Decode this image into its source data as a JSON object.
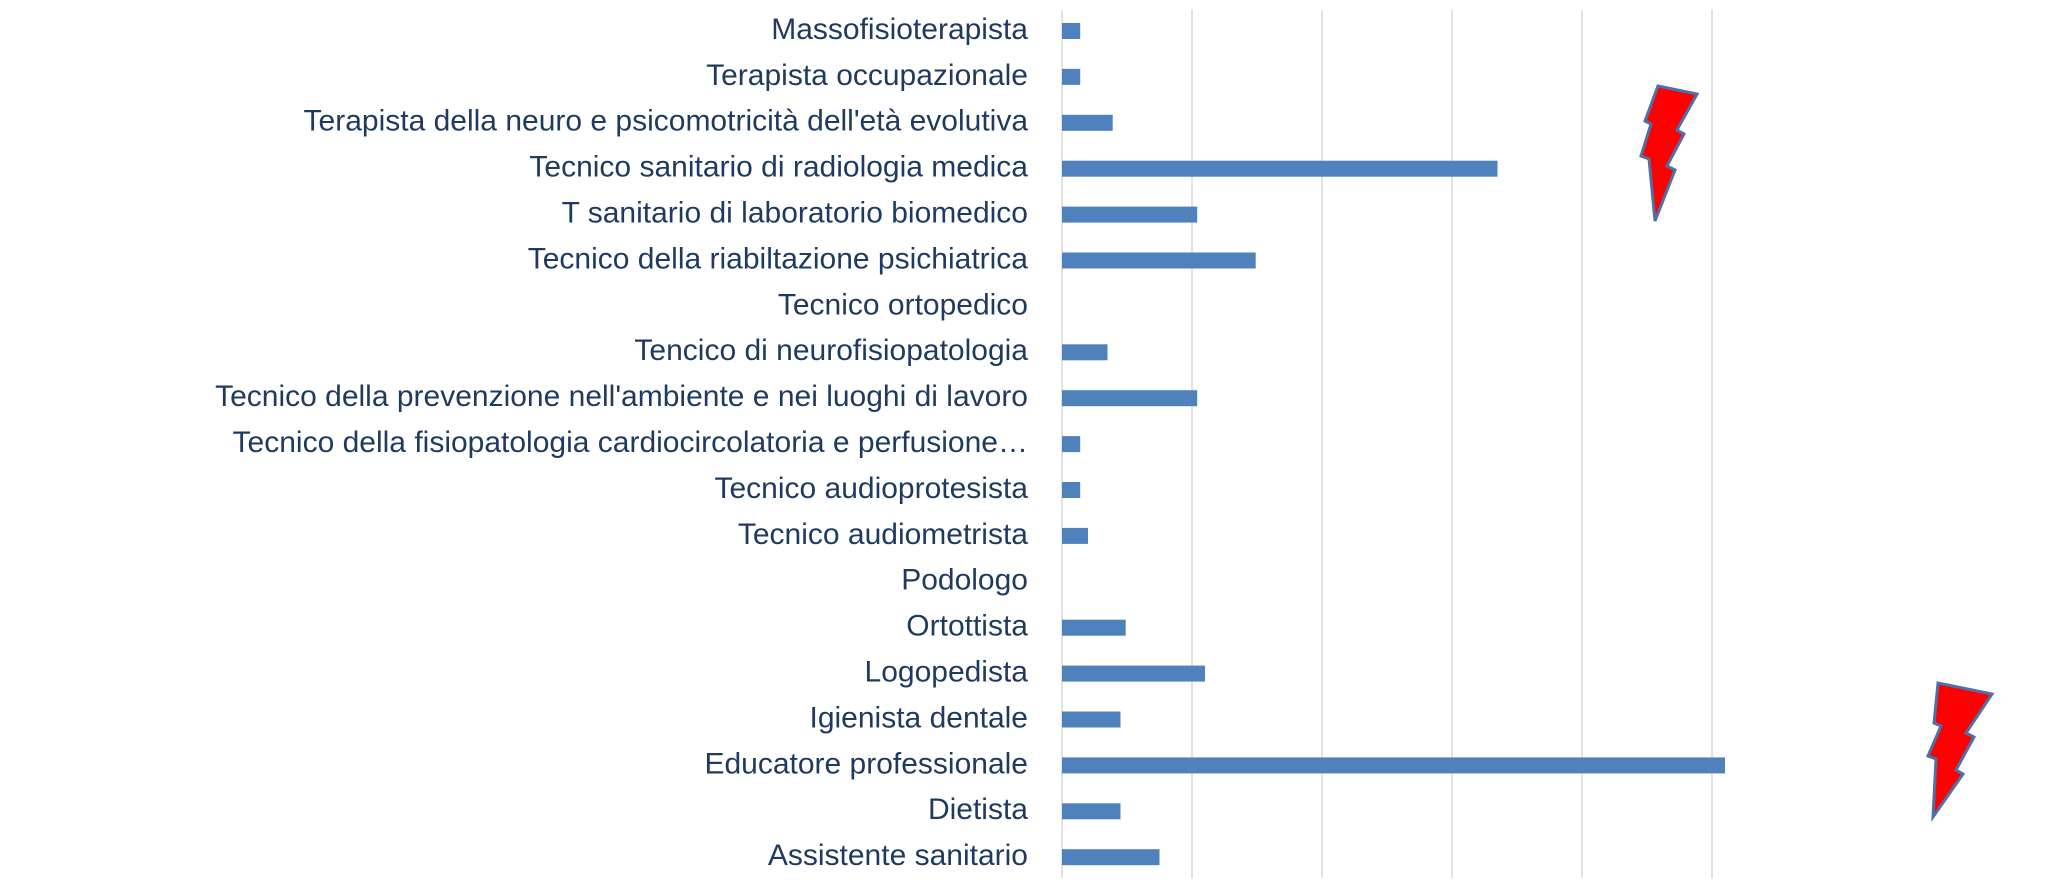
{
  "chart_data": {
    "type": "hbar",
    "categories": [
      "Massofisioterapista",
      "Terapista occupazionale",
      "Terapista della neuro e psicomotricità dell'età evolutiva",
      "Tecnico sanitario di radiologia medica",
      "T sanitario di laboratorio biomedico",
      "Tecnico della riabiltazione psichiatrica",
      "Tecnico ortopedico",
      "Tencico di neurofisiopatologia",
      "Tecnico della prevenzione nell'ambiente e nei luoghi di lavoro",
      "Tecnico della fisiopatologia cardiocircolatoria e perfusione…",
      "Tecnico audioprotesista",
      "Tecnico audiometrista",
      "Podologo",
      "Ortottista",
      "Logopedista",
      "Igienista dentale",
      "Educatore professionale",
      "Dietista",
      "Assistente sanitario"
    ],
    "values": [
      1.4,
      1.4,
      3.9,
      33.5,
      10.4,
      14.9,
      0,
      3.5,
      10.4,
      1.4,
      1.4,
      2.0,
      0,
      4.9,
      11.0,
      4.5,
      51.0,
      4.5,
      7.5
    ],
    "color": "#4f81bd",
    "xlim": [
      0,
      57
    ],
    "xticks": [
      0,
      10,
      20,
      30,
      40,
      50
    ],
    "grid": true
  }
}
